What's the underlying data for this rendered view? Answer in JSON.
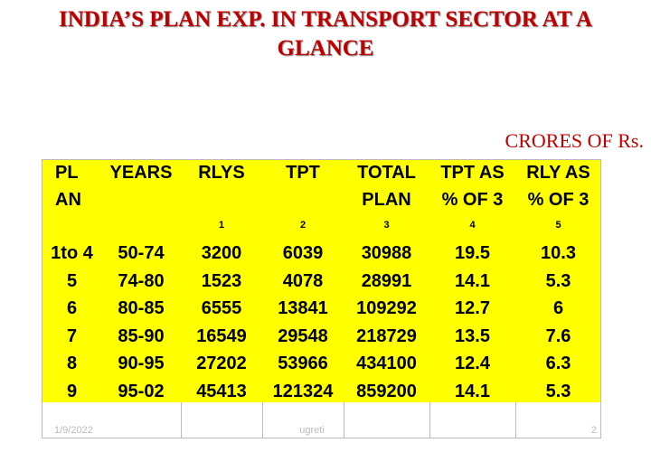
{
  "title_lines": [
    "INDIA’S  PLAN  EXP. IN TRANSPORT SECTOR AT A",
    "GLANCE"
  ],
  "unit": "CRORES OF Rs.",
  "table": {
    "header": [
      [
        "PL",
        "AN"
      ],
      [
        "YEARS"
      ],
      [
        "RLYS"
      ],
      [
        "TPT"
      ],
      [
        "TOTAL",
        "PLAN"
      ],
      [
        "TPT AS",
        "% OF 3"
      ],
      [
        "RLY AS",
        "% OF 3"
      ]
    ],
    "column_numbers": [
      null,
      null,
      "1",
      "2",
      "3",
      "4",
      "5"
    ],
    "rows": [
      [
        "1to 4",
        "50-74",
        3200,
        6039,
        30988,
        19.5,
        10.3
      ],
      [
        "5",
        "74-80",
        1523,
        4078,
        28991,
        14.1,
        5.3
      ],
      [
        "6",
        "80-85",
        6555,
        13841,
        109292,
        12.7,
        6
      ],
      [
        "7",
        "85-90",
        16549,
        29548,
        218729,
        13.5,
        7.6
      ],
      [
        "8",
        "90-95",
        27202,
        53966,
        434100,
        12.4,
        6.3
      ],
      [
        "9",
        "95-02",
        45413,
        121324,
        859200,
        14.1,
        5.3
      ]
    ]
  },
  "footer": {
    "date": "1/9/2022",
    "author": "ugreti",
    "page": "2"
  }
}
